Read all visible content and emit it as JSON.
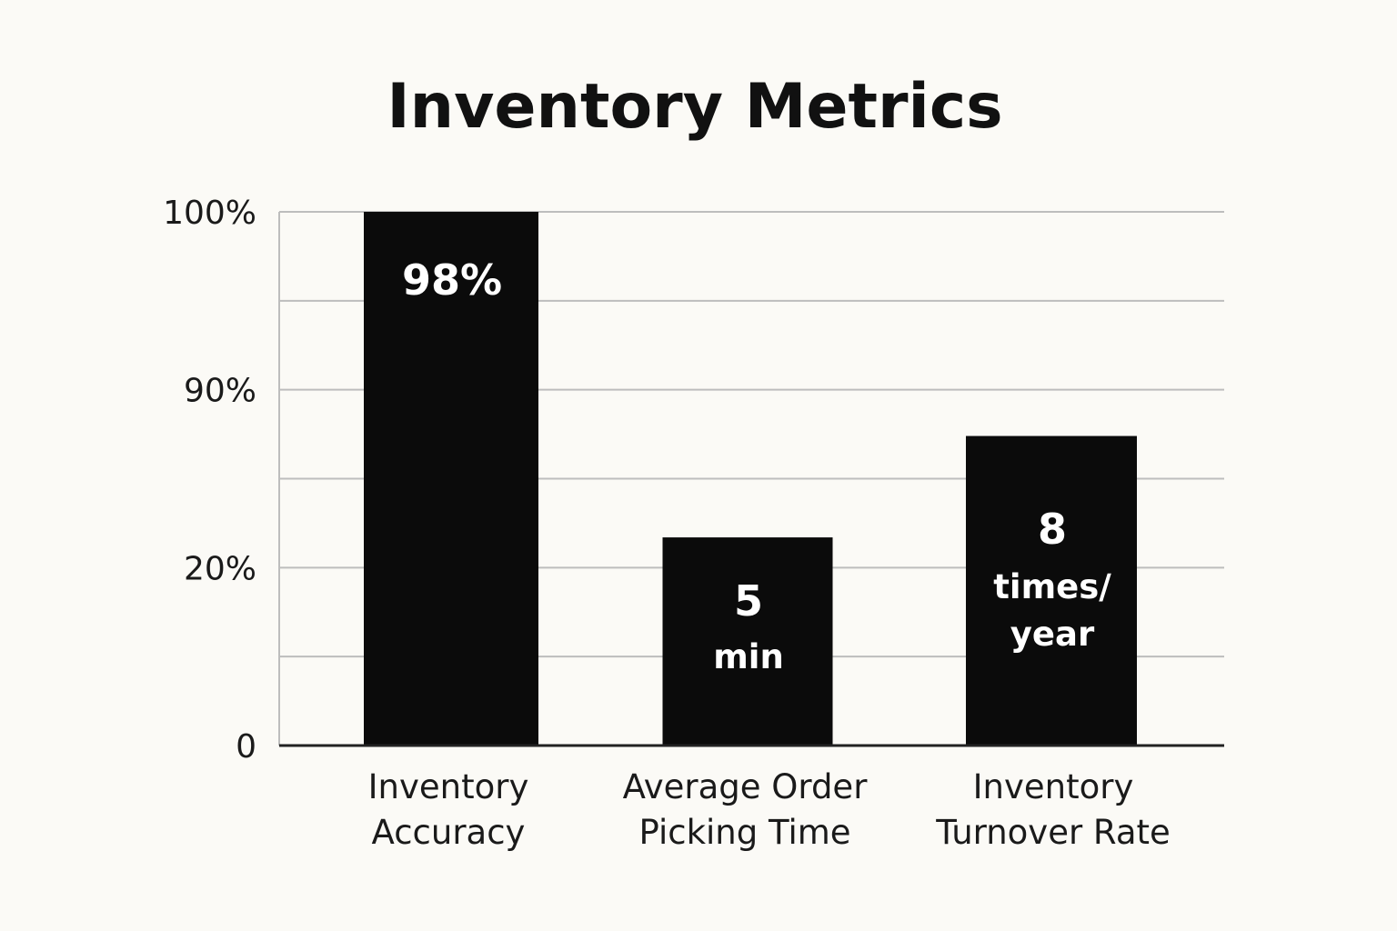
{
  "colors": {
    "background": "#fbfaf6",
    "bar": "#0b0b0b",
    "grid": "#bdbdbd",
    "axis": "#222222",
    "bar_label": "#ffffff"
  },
  "chart_data": {
    "type": "bar",
    "title": "Inventory Metrics",
    "xlabel": "",
    "ylabel": "",
    "grid": true,
    "legend": "none",
    "y_ticks": [
      "0",
      "20%",
      "90%",
      "100%"
    ],
    "y_tick_scale": "non-linear (labels not evenly spaced)",
    "categories": [
      [
        "Inventory",
        "Accuracy"
      ],
      [
        "Average Order",
        "Picking Time"
      ],
      [
        "Inventory",
        "Turnover Rate"
      ]
    ],
    "values": [
      100,
      39,
      58
    ],
    "value_scale": "bar height as percent of axis top",
    "data_labels": [
      [
        "98%"
      ],
      [
        "5",
        "min"
      ],
      [
        "8",
        "times/",
        "year"
      ]
    ]
  }
}
